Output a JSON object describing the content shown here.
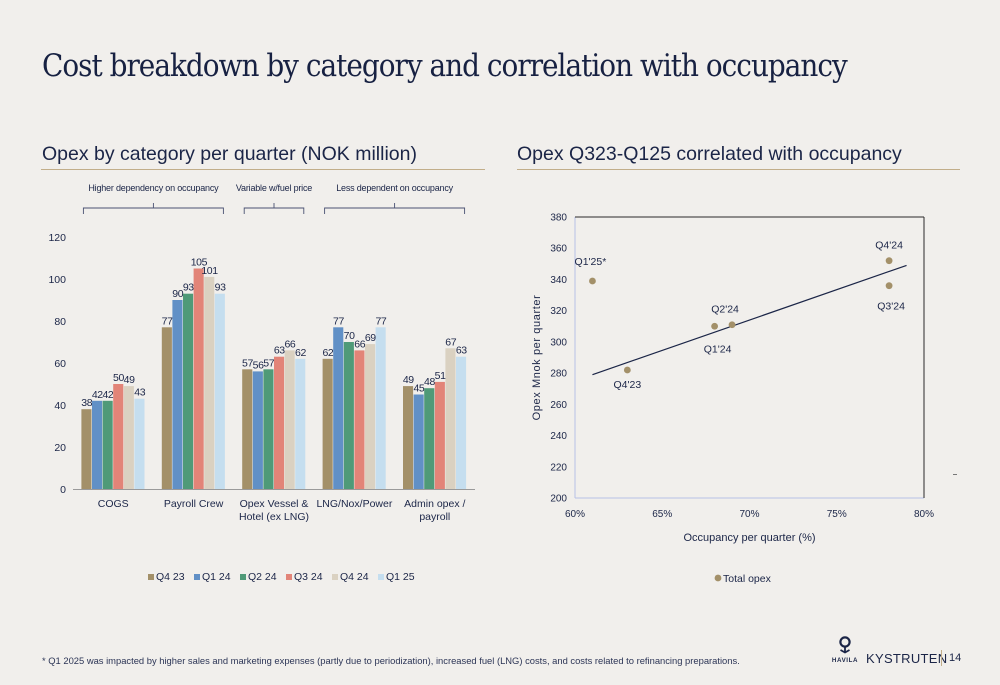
{
  "page": {
    "title": "Cost breakdown by category and correlation with occupancy",
    "footnote": "* Q1 2025 was impacted by higher sales and marketing expenses (partly due to periodization), increased fuel (LNG) costs, and costs related to refinancing preparations.",
    "brand": "KYSTRUTEN",
    "logo_text": "HAVILA",
    "page_number": "14"
  },
  "left_section": {
    "title": "Opex by category per quarter (NOK million)"
  },
  "right_section": {
    "title": "Opex Q323-Q125 correlated with occupancy"
  },
  "colors": {
    "Q4 23": "#a39069",
    "Q1 24": "#6190c6",
    "Q2 24": "#4f9a78",
    "Q3 24": "#e28478",
    "Q4 24": "#dad1c1",
    "Q1 25": "#c5deef",
    "scatter_points": "#a39069",
    "trendline": "#1b2547",
    "rule": "#c2ae8a",
    "text": "#1b2547"
  },
  "chart_data": [
    {
      "type": "bar",
      "title": "Opex by category per quarter (NOK million)",
      "categories": [
        "COGS",
        "Payroll Crew",
        "Opex Vessel & Hotel (ex LNG)",
        "LNG/Nox/Power",
        "Admin opex / payroll"
      ],
      "category_lines": [
        [
          "COGS"
        ],
        [
          "Payroll Crew"
        ],
        [
          "Opex Vessel &",
          "Hotel (ex LNG)"
        ],
        [
          "LNG/Nox/Power"
        ],
        [
          "Admin opex /",
          "payroll"
        ]
      ],
      "series": [
        {
          "name": "Q4 23",
          "values": [
            38,
            77,
            57,
            62,
            49
          ],
          "labels": [
            "38",
            "77",
            "57",
            "62",
            "49"
          ]
        },
        {
          "name": "Q1 24",
          "values": [
            42,
            90,
            56,
            77,
            45
          ],
          "labels": [
            "42",
            "90",
            "56",
            "77",
            "45"
          ]
        },
        {
          "name": "Q2 24",
          "values": [
            42,
            93,
            57,
            70,
            48
          ],
          "labels": [
            "42",
            "93",
            "57",
            "70",
            "48"
          ]
        },
        {
          "name": "Q3 24",
          "values": [
            50,
            105,
            63,
            66,
            51
          ],
          "labels": [
            "50",
            "105",
            "63",
            "66",
            "51"
          ]
        },
        {
          "name": "Q4 24",
          "values": [
            49,
            101,
            66,
            69,
            67
          ],
          "labels": [
            "49",
            "101",
            "66",
            "69",
            "67"
          ]
        },
        {
          "name": "Q1 25",
          "values": [
            43,
            93,
            62,
            77,
            63
          ],
          "labels": [
            "43",
            "93",
            "62",
            "77",
            "63"
          ]
        }
      ],
      "ylim": [
        0,
        120
      ],
      "yticks": [
        0,
        20,
        40,
        60,
        80,
        100,
        120
      ],
      "xlabel": "",
      "ylabel": "",
      "grid": false,
      "legend_position": "bottom",
      "annotations": [
        {
          "text": "Higher dependency on occupancy",
          "from_category": 0,
          "to_category": 1
        },
        {
          "text": "Variable w/fuel price",
          "from_category": 2,
          "to_category": 2
        },
        {
          "text": "Less dependent on occupancy",
          "from_category": 3,
          "to_category": 4
        }
      ]
    },
    {
      "type": "scatter",
      "title": "Opex Q323-Q125 correlated with occupancy",
      "xlabel": "Occupancy per quarter (%)",
      "ylabel": "Opex Mnok per quarter",
      "xlim": [
        0.6,
        0.8
      ],
      "ylim": [
        200,
        380
      ],
      "xticks": [
        0.6,
        0.65,
        0.7,
        0.75,
        0.8
      ],
      "xtick_labels": [
        "60%",
        "65%",
        "70%",
        "75%",
        "80%"
      ],
      "yticks": [
        200,
        220,
        240,
        260,
        280,
        300,
        320,
        340,
        360,
        380
      ],
      "grid": false,
      "legend_position": "bottom",
      "series": [
        {
          "name": "Total opex",
          "points": [
            {
              "label": "Q4'23",
              "x": 0.63,
              "y": 282
            },
            {
              "label": "Q1'24",
              "x": 0.68,
              "y": 310
            },
            {
              "label": "Q2'24",
              "x": 0.69,
              "y": 311
            },
            {
              "label": "Q3'24",
              "x": 0.78,
              "y": 336
            },
            {
              "label": "Q4'24",
              "x": 0.78,
              "y": 352
            },
            {
              "label": "Q1'25*",
              "x": 0.61,
              "y": 339
            }
          ]
        }
      ],
      "trendline": {
        "x": [
          0.61,
          0.79
        ],
        "y": [
          279,
          349
        ]
      }
    }
  ]
}
